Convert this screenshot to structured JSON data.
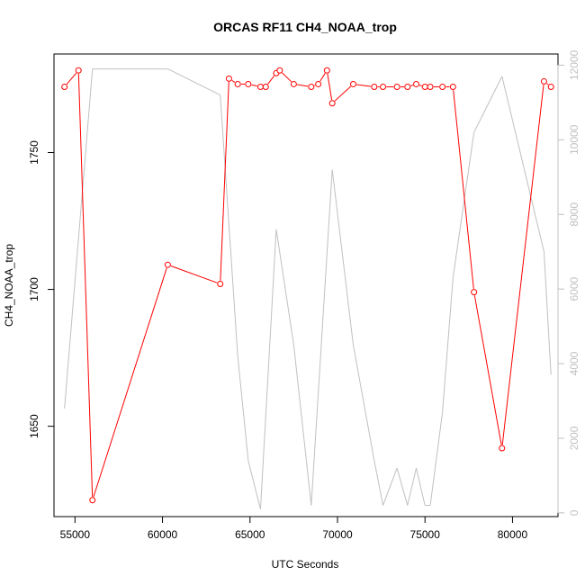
{
  "chart_data": {
    "type": "line",
    "title": "ORCAS RF11 CH4_NOAA_trop",
    "xlabel": "UTC Seconds",
    "ylabel": "CH4_NOAA_trop",
    "xlim": [
      53800,
      82600
    ],
    "ylim": [
      1617,
      1786
    ],
    "y2lim": [
      -100,
      12300
    ],
    "x_ticks": [
      55000,
      60000,
      65000,
      70000,
      75000,
      80000
    ],
    "y_ticks": [
      1650,
      1700,
      1750
    ],
    "y2_ticks": [
      0,
      2000,
      4000,
      6000,
      8000,
      10000,
      12000
    ],
    "series": [
      {
        "color": "#ff0000",
        "axis": "left",
        "marker": "circle",
        "x": [
          54400,
          55200,
          56000,
          60300,
          63300,
          63800,
          64300,
          64900,
          65600,
          65900,
          66500,
          66700,
          67500,
          68500,
          68900,
          69400,
          69700,
          70900,
          72100,
          72600,
          73400,
          74000,
          74500,
          75000,
          75300,
          76000,
          76600,
          77800,
          79400,
          81800,
          82200
        ],
        "values": [
          1774,
          1780,
          1623,
          1709,
          1702,
          1777,
          1775,
          1775,
          1774,
          1774,
          1779,
          1780,
          1775,
          1774,
          1775,
          1780,
          1768,
          1775,
          1774,
          1774,
          1774,
          1774,
          1775,
          1774,
          1774,
          1774,
          1774,
          1699,
          1642,
          1776,
          1774
        ]
      },
      {
        "color": "#c0c0c0",
        "axis": "right",
        "marker": "none",
        "x": [
          54400,
          56000,
          60300,
          63300,
          64300,
          64900,
          65600,
          66500,
          67500,
          68500,
          69700,
          70900,
          72100,
          72600,
          73400,
          74000,
          74500,
          75000,
          75300,
          76000,
          76600,
          77800,
          79400,
          81800,
          82200
        ],
        "values": [
          2800,
          11900,
          11900,
          11200,
          4200,
          1400,
          100,
          7600,
          4500,
          200,
          9200,
          4500,
          1400,
          200,
          1200,
          200,
          1200,
          200,
          200,
          2700,
          6300,
          10200,
          11700,
          7000,
          3700
        ]
      }
    ]
  }
}
